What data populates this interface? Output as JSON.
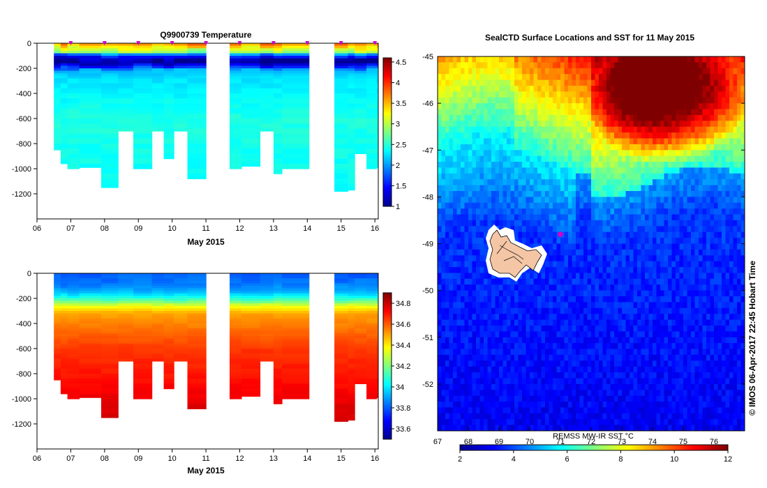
{
  "chart_data": [
    {
      "type": "heatmap",
      "title": "Q9900739  Temperature",
      "xlabel": "May 2015",
      "ylabel": "",
      "x_ticks": [
        "06",
        "07",
        "08",
        "09",
        "10",
        "11",
        "12",
        "13",
        "14",
        "15",
        "16"
      ],
      "y_ticks": [
        "0",
        "-200",
        "-400",
        "-600",
        "-800",
        "-1000",
        "-1200"
      ],
      "xlim": [
        6,
        16.1
      ],
      "ylim": [
        -1400,
        0
      ],
      "colorbar_ticks": [
        "1",
        "1.5",
        "2",
        "2.5",
        "3",
        "3.5",
        "4",
        "4.5"
      ],
      "colorbar_range": [
        1,
        4.6
      ],
      "profile_markers_day": [
        7.0,
        8.0,
        9.0,
        10.0,
        11.0,
        12.0,
        13.0,
        14.0,
        15.0,
        16.0
      ],
      "profiles": [
        {
          "start": 6.5,
          "end": 6.7,
          "depth": 850
        },
        {
          "start": 6.7,
          "end": 6.9,
          "depth": 960
        },
        {
          "start": 6.9,
          "end": 7.25,
          "depth": 1000
        },
        {
          "start": 7.25,
          "end": 7.9,
          "depth": 990
        },
        {
          "start": 7.9,
          "end": 8.4,
          "depth": 1150
        },
        {
          "start": 8.4,
          "end": 8.85,
          "depth": 700
        },
        {
          "start": 8.85,
          "end": 9.4,
          "depth": 1000
        },
        {
          "start": 9.4,
          "end": 9.75,
          "depth": 700
        },
        {
          "start": 9.75,
          "end": 10.05,
          "depth": 920
        },
        {
          "start": 10.05,
          "end": 10.45,
          "depth": 700
        },
        {
          "start": 10.45,
          "end": 11.0,
          "depth": 1080
        },
        {
          "start": 11.7,
          "end": 12.05,
          "depth": 1000
        },
        {
          "start": 12.05,
          "end": 12.6,
          "depth": 980
        },
        {
          "start": 12.6,
          "end": 13.0,
          "depth": 700
        },
        {
          "start": 13.0,
          "end": 13.25,
          "depth": 1040
        },
        {
          "start": 13.25,
          "end": 14.05,
          "depth": 1000
        },
        {
          "start": 14.8,
          "end": 15.2,
          "depth": 1180
        },
        {
          "start": 15.2,
          "end": 15.4,
          "depth": 1170
        },
        {
          "start": 15.4,
          "end": 15.75,
          "depth": 880
        },
        {
          "start": 15.75,
          "end": 16.05,
          "depth": 1000
        },
        {
          "start": 16.05,
          "end": 16.1,
          "depth": 990
        }
      ]
    },
    {
      "type": "heatmap",
      "title": "",
      "xlabel": "May 2015",
      "ylabel": "",
      "x_ticks": [
        "06",
        "07",
        "08",
        "09",
        "10",
        "11",
        "12",
        "13",
        "14",
        "15",
        "16"
      ],
      "y_ticks": [
        "0",
        "-200",
        "-400",
        "-600",
        "-800",
        "-1000",
        "-1200"
      ],
      "xlim": [
        6,
        16.1
      ],
      "ylim": [
        -1400,
        0
      ],
      "colorbar_ticks": [
        "33.6",
        "33.8",
        "34",
        "34.2",
        "34.4",
        "34.6",
        "34.8"
      ],
      "colorbar_range": [
        33.5,
        34.9
      ]
    },
    {
      "type": "heatmap",
      "title": "SealCTD Surface Locations and SST for 11 May 2015",
      "xlabel": "",
      "ylabel": "",
      "x_ticks": [
        "67",
        "68",
        "69",
        "70",
        "71",
        "72",
        "73",
        "74",
        "75",
        "76"
      ],
      "y_ticks": [
        "-45",
        "-46",
        "-47",
        "-48",
        "-49",
        "-50",
        "-51",
        "-52"
      ],
      "xlim": [
        67,
        77
      ],
      "ylim": [
        -53,
        -45
      ],
      "colorbar_title": "REMSS MW-IR SST °C",
      "colorbar_ticks": [
        "2",
        "4",
        "6",
        "8",
        "10",
        "12"
      ],
      "colorbar_range": [
        2,
        12
      ],
      "seal_location": {
        "lon": 71.0,
        "lat": -48.8
      },
      "credit": "© IMOS 06-Apr-2017 22:45 Hobart Time"
    }
  ],
  "colors": {
    "jet": [
      "#00008f",
      "#0000ff",
      "#007fff",
      "#00ffff",
      "#7fff7f",
      "#ffff00",
      "#ff7f00",
      "#ff0000",
      "#7f0000"
    ],
    "marker": "#cc00cc",
    "land": "#f5c6a5"
  }
}
